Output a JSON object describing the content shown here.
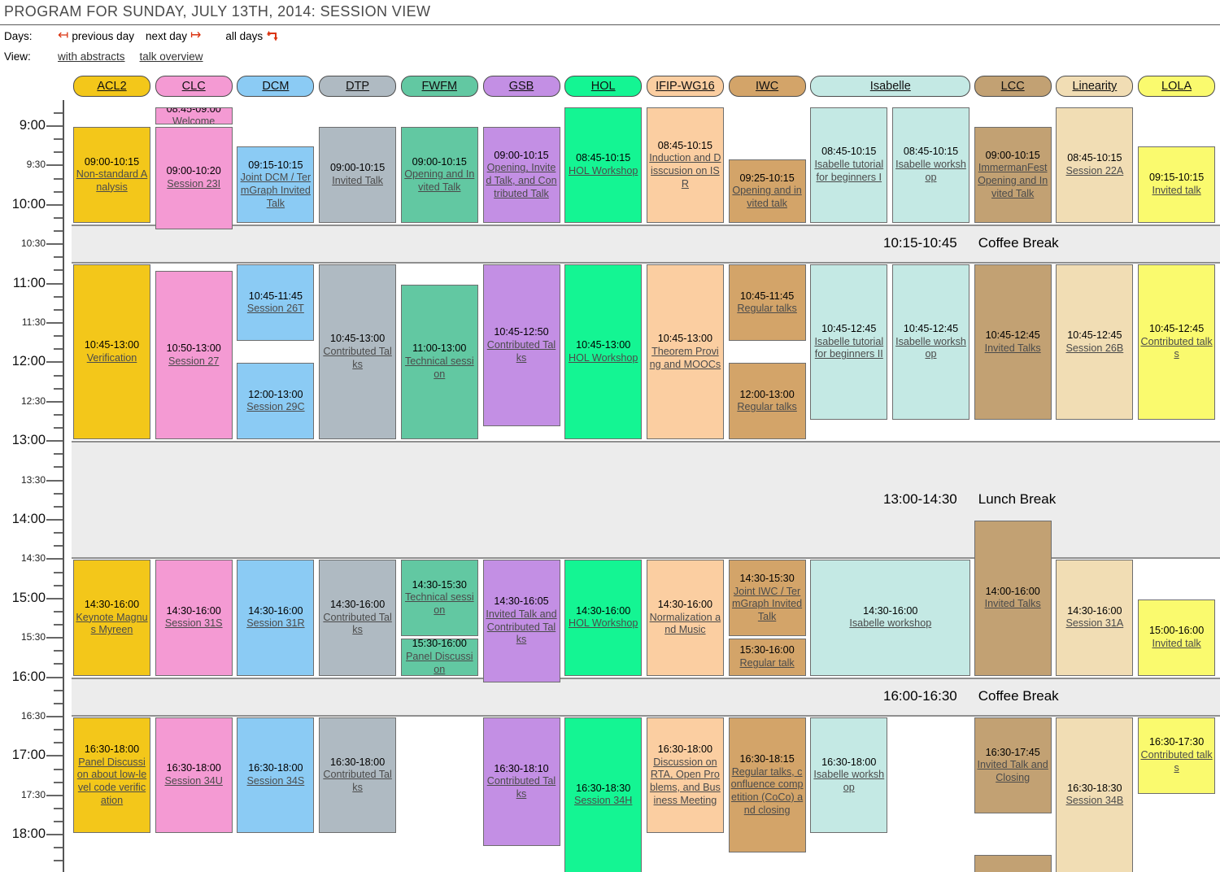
{
  "page": {
    "title": "PROGRAM FOR SUNDAY, JULY 13TH, 2014: SESSION VIEW"
  },
  "toolbar": {
    "days_label": "Days:",
    "previous_day": "previous day",
    "next_day": "next day",
    "all_days": "all days",
    "view_label": "View:",
    "with_abstracts": "with abstracts",
    "talk_overview": "talk overview"
  },
  "icons": {
    "previous_day_glyph": "↤",
    "next_day_glyph": "↦",
    "all_days_icon": "repeat-loop-icon",
    "accent_color": "#da3411"
  },
  "schedule": {
    "axis": {
      "start": "08:50",
      "end": "18:30",
      "tick_minutes": 10,
      "label_minutes": 30
    },
    "tracks": [
      {
        "id": "acl2",
        "label": "ACL2",
        "color": "#F3C71A",
        "slot": 0,
        "span": 1
      },
      {
        "id": "clc",
        "label": "CLC",
        "color": "#F49AD3",
        "slot": 1,
        "span": 1
      },
      {
        "id": "dcm",
        "label": "DCM",
        "color": "#8BCBF4",
        "slot": 2,
        "span": 1
      },
      {
        "id": "dtp",
        "label": "DTP",
        "color": "#AFBAC2",
        "slot": 3,
        "span": 1
      },
      {
        "id": "fwfm",
        "label": "FWFM",
        "color": "#62C8A2",
        "slot": 4,
        "span": 1
      },
      {
        "id": "gsb",
        "label": "GSB",
        "color": "#C38FE4",
        "slot": 5,
        "span": 1
      },
      {
        "id": "hol",
        "label": "HOL",
        "color": "#14F593",
        "slot": 6,
        "span": 1
      },
      {
        "id": "ifip",
        "label": "IFIP-WG16",
        "color": "#FBCEA1",
        "slot": 7,
        "span": 1
      },
      {
        "id": "iwc",
        "label": "IWC",
        "color": "#D3A469",
        "slot": 8,
        "span": 1
      },
      {
        "id": "isabelle",
        "label": "Isabelle",
        "color": "#C4E9E4",
        "slot": 9,
        "span": 2
      },
      {
        "id": "lcc",
        "label": "LCC",
        "color": "#C2A173",
        "slot": 11,
        "span": 1
      },
      {
        "id": "linearity",
        "label": "Linearity",
        "color": "#F1DDB4",
        "slot": 12,
        "span": 1
      },
      {
        "id": "lola",
        "label": "LOLA",
        "color": "#FAFA6E",
        "slot": 13,
        "span": 1
      }
    ],
    "breaks": [
      {
        "time": "10:15-10:45",
        "name": "Coffee Break",
        "start": "10:15",
        "end": "10:45"
      },
      {
        "time": "13:00-14:30",
        "name": "Lunch Break",
        "start": "13:00",
        "end": "14:30"
      },
      {
        "time": "16:00-16:30",
        "name": "Coffee Break",
        "start": "16:00",
        "end": "16:30"
      }
    ],
    "sessions": [
      {
        "track": "acl2",
        "start": "09:00",
        "end": "10:15",
        "time": "09:00-10:15",
        "title": "Non-standard Analysis"
      },
      {
        "track": "acl2",
        "start": "10:45",
        "end": "13:00",
        "time": "10:45-13:00",
        "title": "Verification"
      },
      {
        "track": "acl2",
        "start": "14:30",
        "end": "16:00",
        "time": "14:30-16:00",
        "title": "Keynote Magnus Myreen"
      },
      {
        "track": "acl2",
        "start": "16:30",
        "end": "18:00",
        "time": "16:30-18:00",
        "title": "Panel Discussion about low-level code verification"
      },
      {
        "track": "clc",
        "start": "08:45",
        "end": "09:00",
        "time": "08:45-09:00",
        "title": "Welcome"
      },
      {
        "track": "clc",
        "start": "09:00",
        "end": "10:20",
        "time": "09:00-10:20",
        "title": "Session 23I"
      },
      {
        "track": "clc",
        "start": "10:50",
        "end": "13:00",
        "time": "10:50-13:00",
        "title": "Session 27"
      },
      {
        "track": "clc",
        "start": "14:30",
        "end": "16:00",
        "time": "14:30-16:00",
        "title": "Session 31S"
      },
      {
        "track": "clc",
        "start": "16:30",
        "end": "18:00",
        "time": "16:30-18:00",
        "title": "Session 34U"
      },
      {
        "track": "dcm",
        "start": "09:15",
        "end": "10:15",
        "time": "09:15-10:15",
        "title": "Joint DCM / TermGraph Invited Talk"
      },
      {
        "track": "dcm",
        "start": "10:45",
        "end": "11:45",
        "time": "10:45-11:45",
        "title": "Session 26T"
      },
      {
        "track": "dcm",
        "start": "12:00",
        "end": "13:00",
        "time": "12:00-13:00",
        "title": "Session 29C"
      },
      {
        "track": "dcm",
        "start": "14:30",
        "end": "16:00",
        "time": "14:30-16:00",
        "title": "Session 31R"
      },
      {
        "track": "dcm",
        "start": "16:30",
        "end": "18:00",
        "time": "16:30-18:00",
        "title": "Session 34S"
      },
      {
        "track": "dtp",
        "start": "09:00",
        "end": "10:15",
        "time": "09:00-10:15",
        "title": "Invited Talk"
      },
      {
        "track": "dtp",
        "start": "10:45",
        "end": "13:00",
        "time": "10:45-13:00",
        "title": "Contributed Talks"
      },
      {
        "track": "dtp",
        "start": "14:30",
        "end": "16:00",
        "time": "14:30-16:00",
        "title": "Contributed Talks"
      },
      {
        "track": "dtp",
        "start": "16:30",
        "end": "18:00",
        "time": "16:30-18:00",
        "title": "Contributed Talks"
      },
      {
        "track": "fwfm",
        "start": "09:00",
        "end": "10:15",
        "time": "09:00-10:15",
        "title": "Opening and Invited Talk"
      },
      {
        "track": "fwfm",
        "start": "11:00",
        "end": "13:00",
        "time": "11:00-13:00",
        "title": "Technical session"
      },
      {
        "track": "fwfm",
        "start": "14:30",
        "end": "15:30",
        "time": "14:30-15:30",
        "title": "Technical session"
      },
      {
        "track": "fwfm",
        "start": "15:30",
        "end": "16:00",
        "time": "15:30-16:00",
        "title": "Panel Discussion"
      },
      {
        "track": "gsb",
        "start": "09:00",
        "end": "10:15",
        "time": "09:00-10:15",
        "title": "Opening, Invited Talk, and Contributed Talk"
      },
      {
        "track": "gsb",
        "start": "10:45",
        "end": "12:50",
        "time": "10:45-12:50",
        "title": "Contributed Talks"
      },
      {
        "track": "gsb",
        "start": "14:30",
        "end": "16:05",
        "time": "14:30-16:05",
        "title": "Invited Talk and Contributed Talks"
      },
      {
        "track": "gsb",
        "start": "16:30",
        "end": "18:10",
        "time": "16:30-18:10",
        "title": "Contributed Talks"
      },
      {
        "track": "hol",
        "start": "08:45",
        "end": "10:15",
        "time": "08:45-10:15",
        "title": "HOL Workshop"
      },
      {
        "track": "hol",
        "start": "10:45",
        "end": "13:00",
        "time": "10:45-13:00",
        "title": "HOL Workshop"
      },
      {
        "track": "hol",
        "start": "14:30",
        "end": "16:00",
        "time": "14:30-16:00",
        "title": "HOL Workshop"
      },
      {
        "track": "hol",
        "start": "16:30",
        "end": "18:30",
        "time": "16:30-18:30",
        "title": "Session 34H"
      },
      {
        "track": "ifip",
        "start": "08:45",
        "end": "10:15",
        "time": "08:45-10:15",
        "title": "Induction and Disscusion on ISR"
      },
      {
        "track": "ifip",
        "start": "10:45",
        "end": "13:00",
        "time": "10:45-13:00",
        "title": "Theorem Proving and MOOCs"
      },
      {
        "track": "ifip",
        "start": "14:30",
        "end": "16:00",
        "time": "14:30-16:00",
        "title": "Normalization and Music"
      },
      {
        "track": "ifip",
        "start": "16:30",
        "end": "18:00",
        "time": "16:30-18:00",
        "title": "Discussion on RTA, Open Problems, and Business Meeting"
      },
      {
        "track": "iwc",
        "start": "09:25",
        "end": "10:15",
        "time": "09:25-10:15",
        "title": "Opening and invited talk"
      },
      {
        "track": "iwc",
        "start": "10:45",
        "end": "11:45",
        "time": "10:45-11:45",
        "title": "Regular talks"
      },
      {
        "track": "iwc",
        "start": "12:00",
        "end": "13:00",
        "time": "12:00-13:00",
        "title": "Regular talks"
      },
      {
        "track": "iwc",
        "start": "14:30",
        "end": "15:30",
        "time": "14:30-15:30",
        "title": "Joint IWC / TermGraph Invited Talk"
      },
      {
        "track": "iwc",
        "start": "15:30",
        "end": "16:00",
        "time": "15:30-16:00",
        "title": "Regular talk"
      },
      {
        "track": "iwc",
        "start": "16:30",
        "end": "18:15",
        "time": "16:30-18:15",
        "title": "Regular talks, confluence competition (CoCo) and closing"
      },
      {
        "track": "isabelle",
        "col": 0,
        "start": "08:45",
        "end": "10:15",
        "time": "08:45-10:15",
        "title": "Isabelle tutorial for beginners I"
      },
      {
        "track": "isabelle",
        "col": 1,
        "start": "08:45",
        "end": "10:15",
        "time": "08:45-10:15",
        "title": "Isabelle workshop"
      },
      {
        "track": "isabelle",
        "col": 0,
        "start": "10:45",
        "end": "12:45",
        "time": "10:45-12:45",
        "title": "Isabelle tutorial for beginners II"
      },
      {
        "track": "isabelle",
        "col": 1,
        "start": "10:45",
        "end": "12:45",
        "time": "10:45-12:45",
        "title": "Isabelle workshop"
      },
      {
        "track": "isabelle",
        "wide": true,
        "start": "14:30",
        "end": "16:00",
        "time": "14:30-16:00",
        "title": "Isabelle workshop"
      },
      {
        "track": "isabelle",
        "col": 0,
        "start": "16:30",
        "end": "18:00",
        "time": "16:30-18:00",
        "title": "Isabelle workshop"
      },
      {
        "track": "lcc",
        "start": "09:00",
        "end": "10:15",
        "time": "09:00-10:15",
        "title": "ImmermanFest Opening and Invited Talk"
      },
      {
        "track": "lcc",
        "start": "10:45",
        "end": "12:45",
        "time": "10:45-12:45",
        "title": "Invited Talks"
      },
      {
        "track": "lcc",
        "start": "14:00",
        "end": "16:00",
        "time": "14:00-16:00",
        "title": "Invited Talks"
      },
      {
        "track": "lcc",
        "start": "16:30",
        "end": "17:45",
        "time": "16:30-17:45",
        "title": "Invited Talk and Closing"
      },
      {
        "track": "lcc",
        "start": "18:15",
        "end": "18:45",
        "time": "",
        "title": ""
      },
      {
        "track": "linearity",
        "start": "08:45",
        "end": "10:15",
        "time": "08:45-10:15",
        "title": "Session 22A"
      },
      {
        "track": "linearity",
        "start": "10:45",
        "end": "12:45",
        "time": "10:45-12:45",
        "title": "Session 26B"
      },
      {
        "track": "linearity",
        "start": "14:30",
        "end": "16:00",
        "time": "14:30-16:00",
        "title": "Session 31A"
      },
      {
        "track": "linearity",
        "start": "16:30",
        "end": "18:30",
        "time": "16:30-18:30",
        "title": "Session 34B"
      },
      {
        "track": "lola",
        "start": "09:15",
        "end": "10:15",
        "time": "09:15-10:15",
        "title": "Invited talk"
      },
      {
        "track": "lola",
        "start": "10:45",
        "end": "12:45",
        "time": "10:45-12:45",
        "title": "Contributed talks"
      },
      {
        "track": "lola",
        "start": "15:00",
        "end": "16:00",
        "time": "15:00-16:00",
        "title": "Invited talk"
      },
      {
        "track": "lola",
        "start": "16:30",
        "end": "17:30",
        "time": "16:30-17:30",
        "title": "Contributed talks"
      }
    ]
  }
}
